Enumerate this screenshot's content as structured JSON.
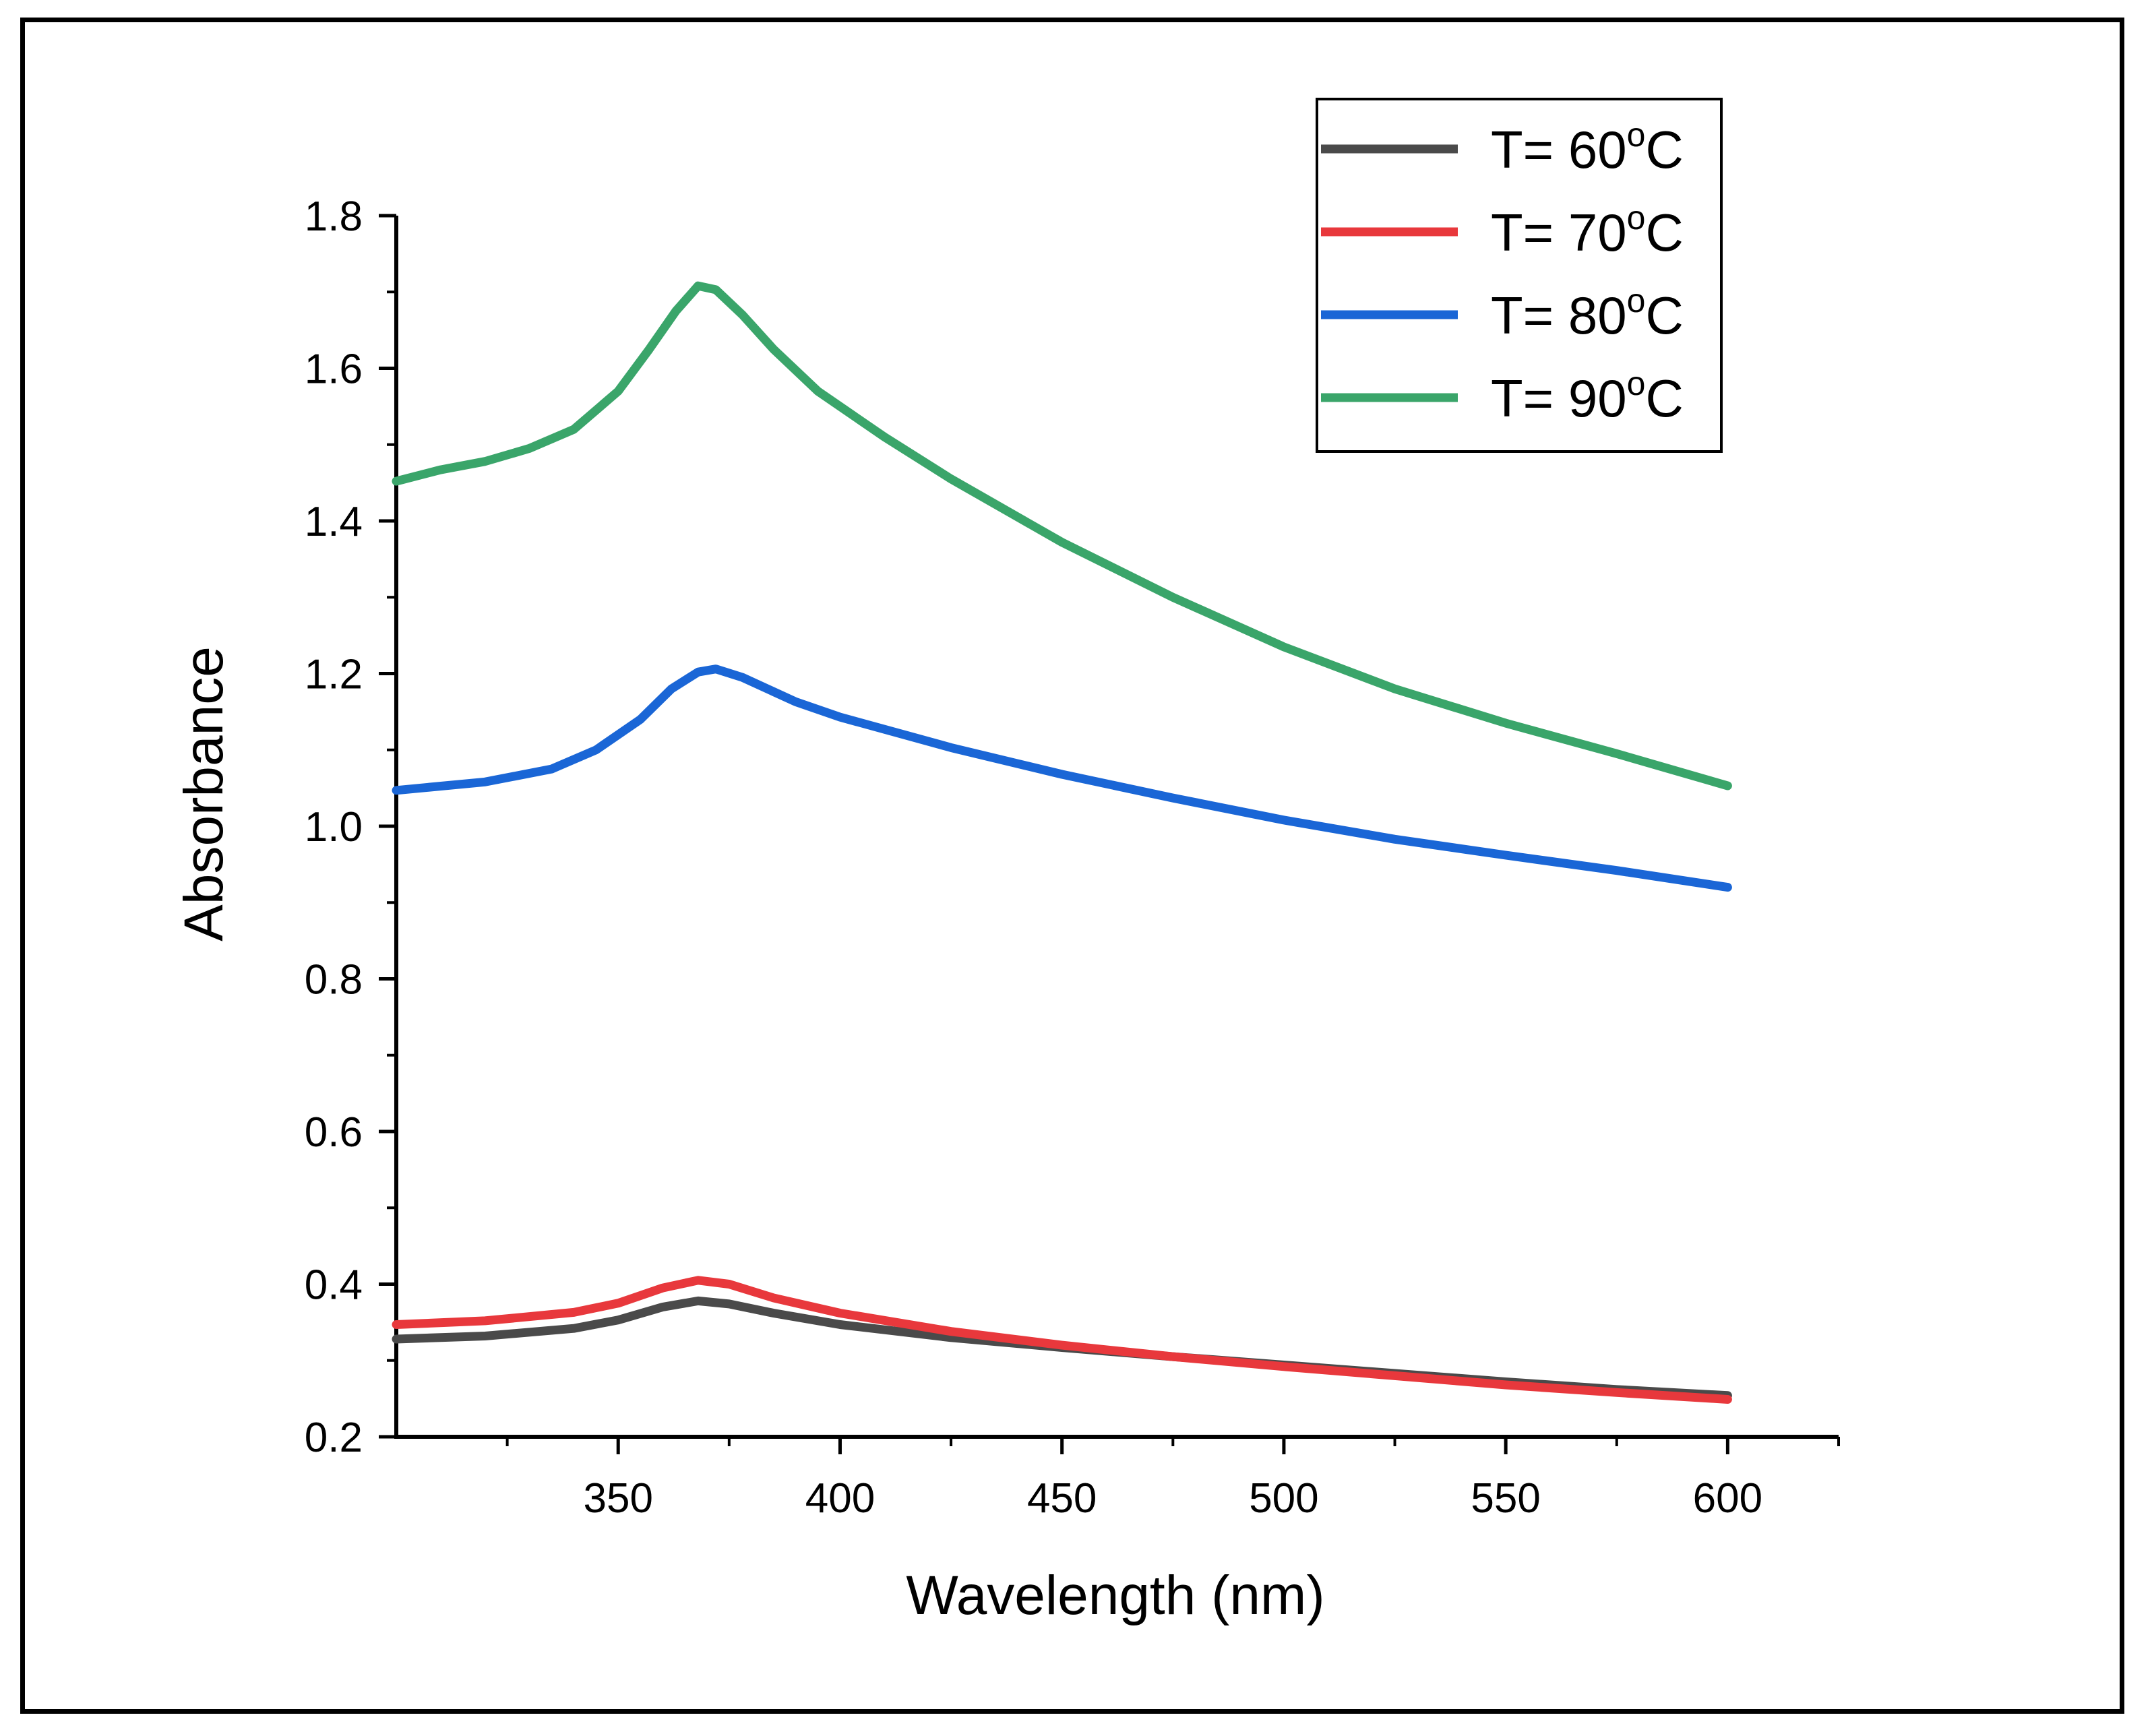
{
  "chart_data": {
    "type": "line",
    "xlabel": "Wavelength (nm)",
    "ylabel": "Absorbance",
    "xlim": [
      300,
      625
    ],
    "ylim": [
      0.2,
      1.8
    ],
    "xticks": [
      "350",
      "400",
      "450",
      "500",
      "550",
      "600"
    ],
    "yticks": [
      "0.2",
      "0.4",
      "0.6",
      "0.8",
      "1.0",
      "1.2",
      "1.4",
      "1.6",
      "1.8"
    ],
    "legend_position": "top-right",
    "grid": false,
    "series": [
      {
        "name": "T= 60",
        "name_sup": "o",
        "name_suffix": "C",
        "color": "#4a4a4a",
        "points": [
          [
            300,
            0.328
          ],
          [
            320,
            0.332
          ],
          [
            340,
            0.342
          ],
          [
            350,
            0.353
          ],
          [
            360,
            0.37
          ],
          [
            368,
            0.378
          ],
          [
            375,
            0.374
          ],
          [
            385,
            0.362
          ],
          [
            400,
            0.347
          ],
          [
            425,
            0.33
          ],
          [
            450,
            0.317
          ],
          [
            475,
            0.305
          ],
          [
            500,
            0.294
          ],
          [
            525,
            0.283
          ],
          [
            550,
            0.272
          ],
          [
            575,
            0.262
          ],
          [
            600,
            0.254
          ]
        ]
      },
      {
        "name": "T= 70",
        "name_sup": "o",
        "name_suffix": "C",
        "color": "#e8383c",
        "points": [
          [
            300,
            0.347
          ],
          [
            320,
            0.352
          ],
          [
            340,
            0.363
          ],
          [
            350,
            0.375
          ],
          [
            360,
            0.395
          ],
          [
            368,
            0.405
          ],
          [
            375,
            0.4
          ],
          [
            385,
            0.382
          ],
          [
            400,
            0.362
          ],
          [
            425,
            0.338
          ],
          [
            450,
            0.32
          ],
          [
            475,
            0.305
          ],
          [
            500,
            0.292
          ],
          [
            525,
            0.28
          ],
          [
            550,
            0.268
          ],
          [
            575,
            0.258
          ],
          [
            600,
            0.249
          ]
        ]
      },
      {
        "name": "T= 80",
        "name_sup": "o",
        "name_suffix": "C",
        "color": "#1a66d6",
        "points": [
          [
            300,
            1.047
          ],
          [
            320,
            1.058
          ],
          [
            335,
            1.075
          ],
          [
            345,
            1.1
          ],
          [
            355,
            1.14
          ],
          [
            362,
            1.18
          ],
          [
            368,
            1.202
          ],
          [
            372,
            1.206
          ],
          [
            378,
            1.195
          ],
          [
            390,
            1.163
          ],
          [
            400,
            1.143
          ],
          [
            425,
            1.103
          ],
          [
            450,
            1.068
          ],
          [
            475,
            1.037
          ],
          [
            500,
            1.008
          ],
          [
            525,
            0.983
          ],
          [
            550,
            0.962
          ],
          [
            575,
            0.942
          ],
          [
            600,
            0.92
          ]
        ]
      },
      {
        "name": "T= 90",
        "name_sup": "o",
        "name_suffix": "C",
        "color": "#3aa56a",
        "points": [
          [
            300,
            1.452
          ],
          [
            310,
            1.467
          ],
          [
            320,
            1.478
          ],
          [
            330,
            1.495
          ],
          [
            340,
            1.52
          ],
          [
            350,
            1.57
          ],
          [
            357,
            1.625
          ],
          [
            363,
            1.675
          ],
          [
            368,
            1.708
          ],
          [
            372,
            1.703
          ],
          [
            378,
            1.67
          ],
          [
            385,
            1.625
          ],
          [
            395,
            1.57
          ],
          [
            410,
            1.51
          ],
          [
            425,
            1.455
          ],
          [
            450,
            1.372
          ],
          [
            475,
            1.3
          ],
          [
            500,
            1.235
          ],
          [
            525,
            1.18
          ],
          [
            550,
            1.135
          ],
          [
            575,
            1.095
          ],
          [
            600,
            1.053
          ]
        ]
      }
    ]
  }
}
